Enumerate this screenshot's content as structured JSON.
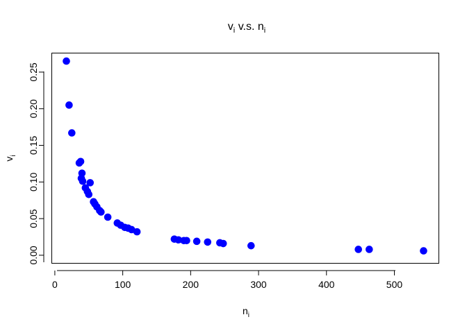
{
  "chart_data": {
    "type": "scatter",
    "title": {
      "main": "v",
      "sub1": "i",
      "mid": " v.s. n",
      "sub2": "i"
    },
    "xlabel": {
      "main": "n",
      "sub": "i"
    },
    "ylabel": {
      "main": "v",
      "sub": "i"
    },
    "xlim": [
      -4,
      565
    ],
    "ylim": [
      -0.0105,
      0.2755
    ],
    "xticks": [
      0,
      100,
      200,
      300,
      400,
      500
    ],
    "xtick_labels": [
      "0",
      "100",
      "200",
      "300",
      "400",
      "500"
    ],
    "yticks": [
      0.0,
      0.05,
      0.1,
      0.15,
      0.2,
      0.25
    ],
    "ytick_labels": [
      "0.00",
      "0.05",
      "0.10",
      "0.15",
      "0.20",
      "0.25"
    ],
    "grid": false,
    "point_color": "#0000ff",
    "series": [
      {
        "x": [
          17,
          21,
          25,
          36,
          38,
          39,
          40,
          41,
          45,
          48,
          50,
          52,
          57,
          59,
          62,
          66,
          68,
          78,
          92,
          97,
          103,
          108,
          113,
          121,
          176,
          182,
          190,
          194,
          209,
          225,
          243,
          248,
          289,
          447,
          463,
          543
        ],
        "y": [
          0.265,
          0.205,
          0.167,
          0.126,
          0.128,
          0.105,
          0.112,
          0.101,
          0.092,
          0.087,
          0.083,
          0.099,
          0.073,
          0.07,
          0.066,
          0.061,
          0.059,
          0.052,
          0.044,
          0.041,
          0.038,
          0.037,
          0.035,
          0.032,
          0.022,
          0.021,
          0.02,
          0.02,
          0.019,
          0.018,
          0.017,
          0.016,
          0.013,
          0.008,
          0.008,
          0.006
        ]
      }
    ]
  }
}
